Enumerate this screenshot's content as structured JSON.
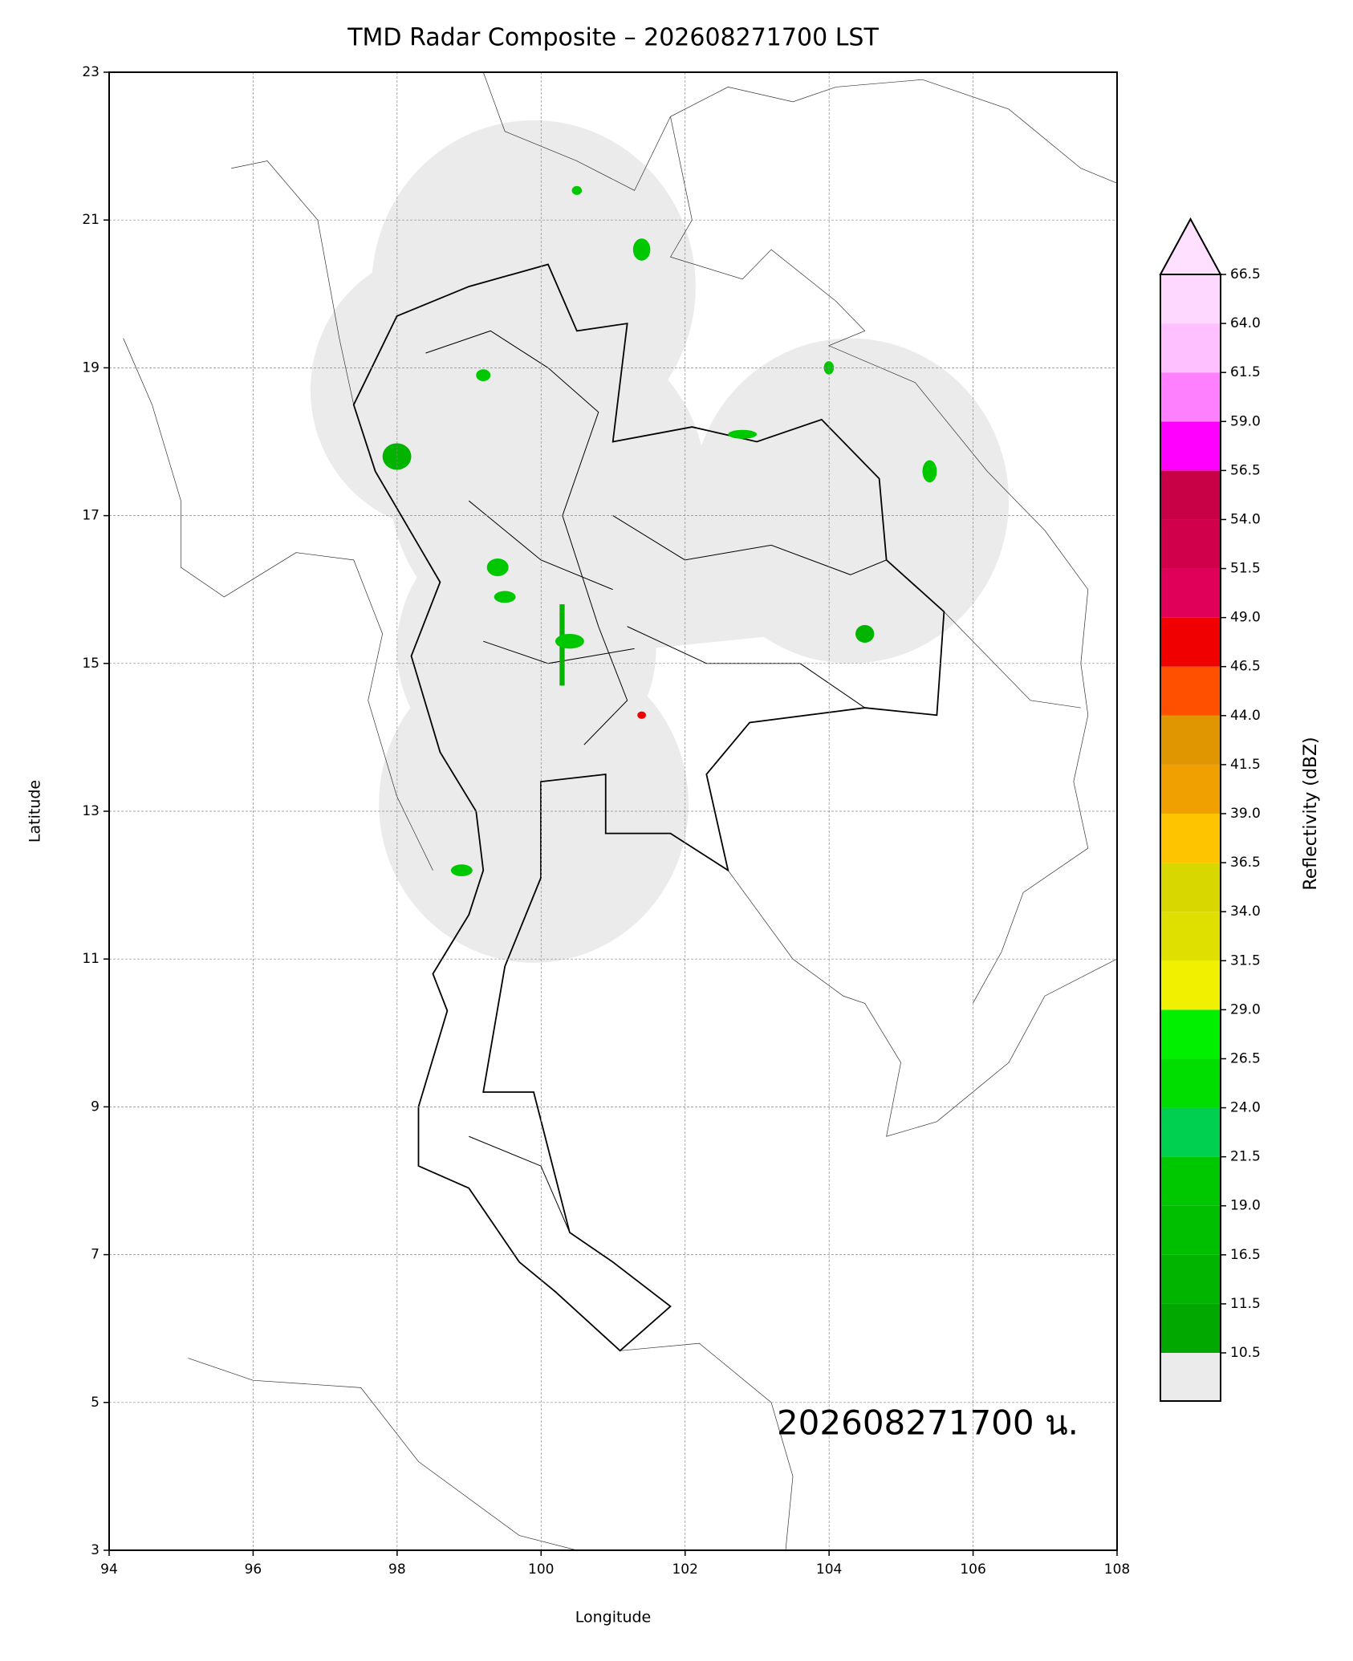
{
  "map": {
    "title": "TMD Radar Composite – 202608271700 LST",
    "xlabel": "Longitude",
    "ylabel": "Latitude",
    "xlim": [
      94,
      108
    ],
    "ylim": [
      3,
      23
    ],
    "xticks": [
      94,
      96,
      98,
      100,
      102,
      104,
      106,
      108
    ],
    "yticks": [
      3,
      5,
      7,
      9,
      11,
      13,
      15,
      17,
      19,
      21,
      23
    ],
    "grid": true,
    "annotation": "202608271700 น.",
    "colorbar": {
      "label": "Reflectivity (dBZ)",
      "ticks": [
        10.5,
        11.5,
        16.5,
        {
          "value": 19,
          "label": "19.0"
        },
        21.5,
        {
          "value": 24,
          "label": "24.0"
        },
        26.5,
        {
          "value": 29,
          "label": "29.0"
        },
        31.5,
        {
          "value": 34,
          "label": "34.0"
        },
        36.5,
        {
          "value": 39,
          "label": "39.0"
        },
        41.5,
        {
          "value": 44,
          "label": "44.0"
        },
        46.5,
        {
          "value": 49,
          "label": "49.0"
        },
        51.5,
        {
          "value": 54,
          "label": "54.0"
        },
        56.5,
        {
          "value": 59,
          "label": "59.0"
        },
        61.5,
        {
          "value": 64,
          "label": "64.0"
        },
        66.5
      ],
      "colors": [
        "#00a800",
        "#00b400",
        "#00be00",
        "#00c800",
        "#00d050",
        "#00de00",
        "#00f000",
        "#f0f000",
        "#e0e000",
        "#d8d800",
        "#ffc400",
        "#f0a000",
        "#e09600",
        "#ff5000",
        "#f00000",
        "#e0005a",
        "#d0004a",
        "#c80046",
        "#ff00ff",
        "#ff80ff",
        "#ffc0ff",
        "#ffd8ff"
      ],
      "under_color": "#ebebeb",
      "over_color": "#ffe0ff"
    }
  }
}
